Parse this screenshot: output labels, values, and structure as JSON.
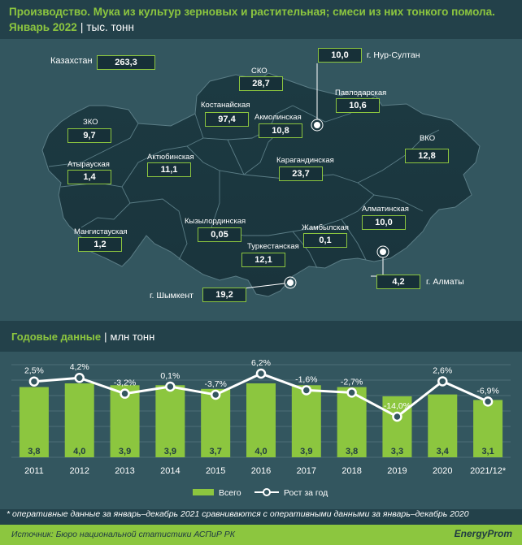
{
  "header": {
    "title": "Производство. Мука из культур зерновых и растительная; смеси из них тонкого помола.",
    "period": "Январь 2022",
    "unit": "тыс. тонн"
  },
  "map": {
    "kz_label": "Казахстан",
    "kz_value": "263,3",
    "regions": [
      {
        "name": "СКО",
        "value": "28,7"
      },
      {
        "name": "Костанайская",
        "value": "97,4"
      },
      {
        "name": "Акмолинская",
        "value": "10,8"
      },
      {
        "name": "Павлодарская",
        "value": "10,6"
      },
      {
        "name": "ЗКО",
        "value": "9,7"
      },
      {
        "name": "Атырауская",
        "value": "1,4"
      },
      {
        "name": "Актюбинская",
        "value": "11,1"
      },
      {
        "name": "Карагандинская",
        "value": "23,7"
      },
      {
        "name": "ВКО",
        "value": "12,8"
      },
      {
        "name": "Мангистауская",
        "value": "1,2"
      },
      {
        "name": "Кызылординская",
        "value": "0,05"
      },
      {
        "name": "Жамбылская",
        "value": "0,1"
      },
      {
        "name": "Алматинская",
        "value": "10,0"
      },
      {
        "name": "Туркестанская",
        "value": "12,1"
      },
      {
        "name": "г. Нур-Султан",
        "value": "10,0"
      },
      {
        "name": "г. Алматы",
        "value": "4,2"
      },
      {
        "name": "г. Шымкент",
        "value": "19,2"
      }
    ]
  },
  "annual": {
    "title": "Годовые данные",
    "unit": "млн тонн"
  },
  "chart_data": {
    "type": "bar",
    "categories": [
      "2011",
      "2012",
      "2013",
      "2014",
      "2015",
      "2016",
      "2017",
      "2018",
      "2019",
      "2020",
      "2021/12*"
    ],
    "series": [
      {
        "name": "Всего",
        "type": "bar",
        "values": [
          3.8,
          4.0,
          3.9,
          3.9,
          3.7,
          4.0,
          3.9,
          3.8,
          3.3,
          3.4,
          3.1
        ],
        "labels": [
          "3,8",
          "4,0",
          "3,9",
          "3,9",
          "3,7",
          "4,0",
          "3,9",
          "3,8",
          "3,3",
          "3,4",
          "3,1"
        ]
      },
      {
        "name": "Рост за год",
        "type": "line",
        "values": [
          2.5,
          4.2,
          -3.2,
          0.1,
          -3.7,
          6.2,
          -1.6,
          -2.7,
          -14.0,
          2.6,
          -6.9
        ],
        "labels": [
          "2,5%",
          "4,2%",
          "-3,2%",
          "0,1%",
          "-3,7%",
          "6,2%",
          "-1,6%",
          "-2,7%",
          "-14,0%",
          "2,6%",
          "-6,9%"
        ]
      }
    ],
    "legend_position": "bottom",
    "grid": true,
    "bar_color": "#8cc63f",
    "line_color": "#ffffff"
  },
  "footnote": "* оперативные данные за январь–декабрь 2021 сравниваются с оперативными данными за январь–декабрь 2020",
  "source": "Источник: Бюро национальной статистики АСПиР РК",
  "logo": "EnergyProm"
}
